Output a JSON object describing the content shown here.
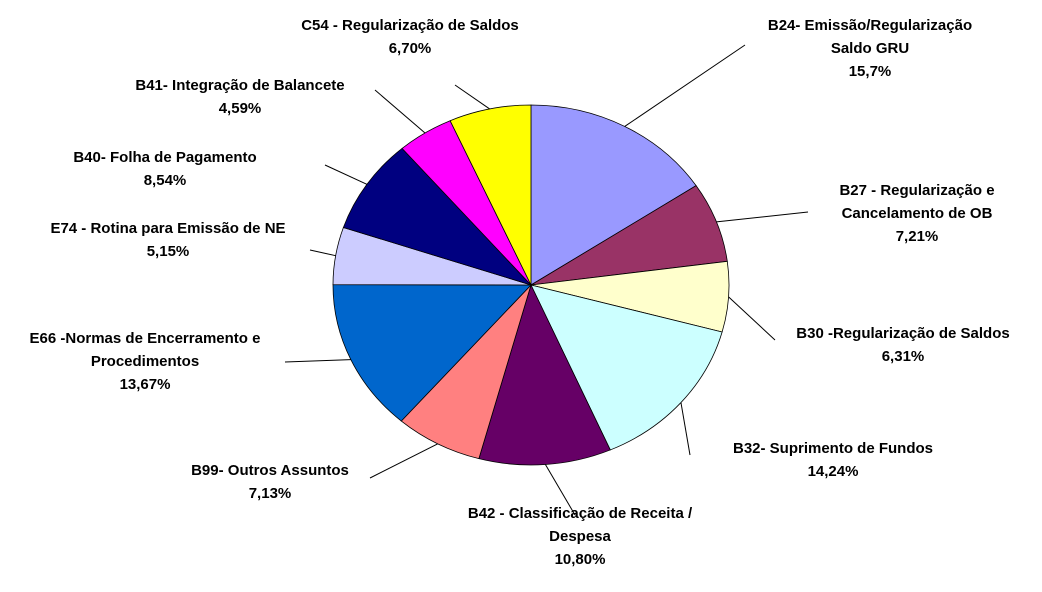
{
  "chart_data": {
    "type": "pie",
    "categories": [
      "B24- Emissão/Regularização Saldo GRU",
      "B27 - Regularização e Cancelamento de OB",
      "B30 -Regularização de Saldos",
      "B32- Suprimento de Fundos",
      "B42 - Classificação de Receita / Despesa",
      "B99- Outros Assuntos",
      "E66 -Normas de Encerramento e Procedimentos",
      "E74 - Rotina para Emissão de NE",
      "B40- Folha de Pagamento",
      "B41- Integração de Balancete",
      "C54 - Regularização  de Saldos"
    ],
    "values": [
      15.7,
      7.21,
      6.31,
      14.24,
      10.8,
      7.13,
      13.67,
      5.15,
      8.54,
      4.59,
      6.7
    ],
    "value_labels": [
      "15,7%",
      "7,21%",
      "6,31%",
      "14,24%",
      "10,80%",
      "7,13%",
      "13,67%",
      "5,15%",
      "8,54%",
      "4,59%",
      "6,70%"
    ],
    "colors": [
      "#9999ff",
      "#993366",
      "#ffffcc",
      "#ccffff",
      "#660066",
      "#ff8080",
      "#0066cc",
      "#ccccff",
      "#000080",
      "#ff00ff",
      "#ffff00"
    ]
  }
}
